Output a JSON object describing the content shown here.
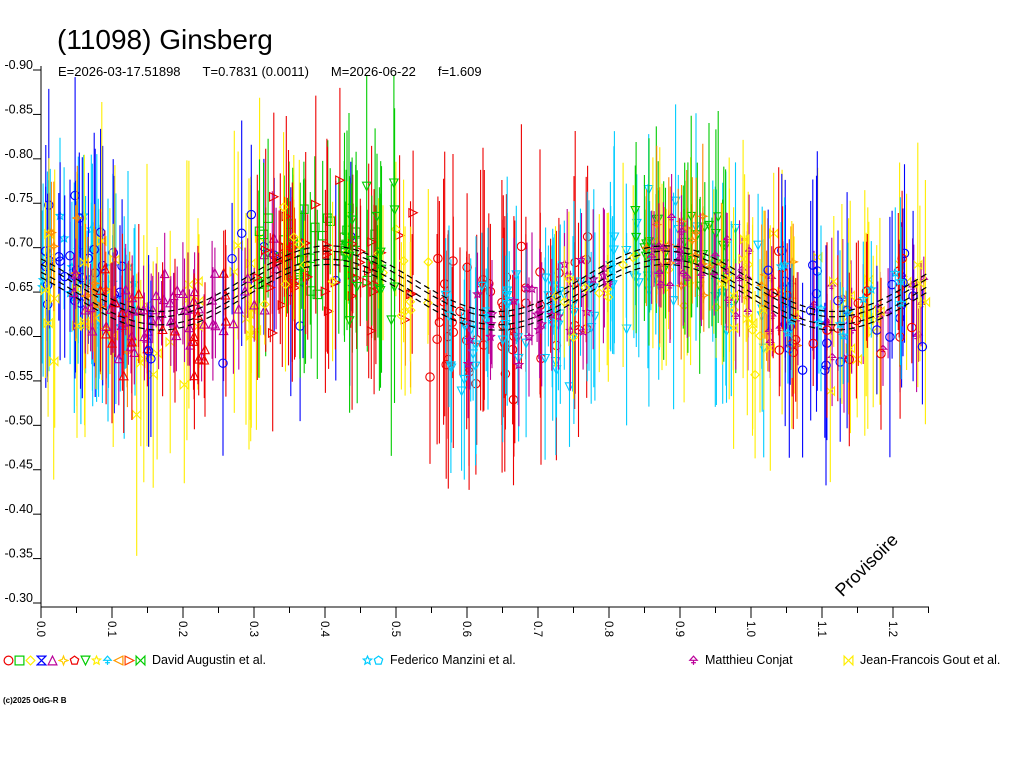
{
  "header": {
    "title": "(11098) Ginsberg",
    "ephemeris": {
      "E": "E=2026-03-17.51898",
      "T": "T=0.7831 (0.0011)",
      "M": "M=2026-06-22",
      "f": "f=1.609"
    }
  },
  "watermark": "Provisoire",
  "footer": "(c)2025 OdG-R B",
  "legend": {
    "groups": [
      {
        "label": "David Augustin et al.",
        "symbols": [
          {
            "shape": "circle",
            "color": "#ee0000"
          },
          {
            "shape": "square",
            "color": "#00cc00"
          },
          {
            "shape": "diamond",
            "color": "#ffee00"
          },
          {
            "shape": "bowtie-v",
            "color": "#0000ff"
          },
          {
            "shape": "triangle-up",
            "color": "#bb0099"
          },
          {
            "shape": "star4",
            "color": "#ffcc00"
          },
          {
            "shape": "pentagon",
            "color": "#ee0000"
          },
          {
            "shape": "triangle-down",
            "color": "#00cc00"
          },
          {
            "shape": "star",
            "color": "#ffee00"
          },
          {
            "shape": "tree",
            "color": "#00ccff"
          },
          {
            "shape": "triangle-left",
            "color": "#ff9900"
          },
          {
            "shape": "triangle-right",
            "color": "#ff4400"
          },
          {
            "shape": "bowtie-h",
            "color": "#00cc00"
          }
        ]
      },
      {
        "label": "Federico Manzini et al.",
        "symbols": [
          {
            "shape": "star",
            "color": "#00ccff"
          },
          {
            "shape": "pentagon",
            "color": "#00ccff"
          }
        ]
      },
      {
        "label": "Matthieu Conjat",
        "symbols": [
          {
            "shape": "tree",
            "color": "#bb0099"
          }
        ]
      },
      {
        "label": "Jean-Francois Gout et al.",
        "symbols": [
          {
            "shape": "bowtie-h",
            "color": "#ffee00"
          }
        ]
      }
    ]
  },
  "chart_data": {
    "type": "scatter",
    "title": "(11098) Ginsberg",
    "x_axis": {
      "min": 0.0,
      "max": 1.25,
      "major_ticks": [
        0.0,
        0.1,
        0.2,
        0.3,
        0.4,
        0.5,
        0.6,
        0.7,
        0.8,
        0.9,
        1.0,
        1.1,
        1.2
      ],
      "minor_step": 0.05,
      "tick_label_rotation_deg": 90
    },
    "y_axis": {
      "top": -0.9,
      "bottom": -0.3,
      "ticks": [
        -0.9,
        -0.85,
        -0.8,
        -0.75,
        -0.7,
        -0.65,
        -0.6,
        -0.55,
        -0.5,
        -0.45,
        -0.4,
        -0.35,
        -0.3
      ],
      "inverted_magnitude_scale": true
    },
    "model_curve": {
      "style": "dashed-black",
      "mid_mag": -0.649,
      "amplitude_mag": 0.037,
      "phase_of_maximum": 0.405,
      "oscillation_period_phase": 0.475,
      "band_offsets_mag": [
        -0.0105,
        -0.0045,
        0.0045,
        0.0105
      ]
    },
    "sessions": [
      {
        "color": "#00ccff",
        "symbol": "star",
        "x_range": [
          0.0,
          0.135
        ],
        "n": 42,
        "offset": -0.01,
        "sigma": 0.03,
        "err": [
          0.05,
          0.13
        ]
      },
      {
        "color": "#0000ff",
        "symbol": "circle",
        "x_range": [
          0.0,
          0.115
        ],
        "n": 26,
        "offset": -0.02,
        "sigma": 0.04,
        "err": [
          0.06,
          0.14
        ]
      },
      {
        "color": "#ffee00",
        "symbol": "bowtie-h",
        "x_range": [
          0.0,
          0.31
        ],
        "n": 40,
        "offset": 0.01,
        "sigma": 0.045,
        "err": [
          0.07,
          0.16
        ]
      },
      {
        "color": "#ff8800",
        "symbol": "star4",
        "x_range": [
          0.0,
          0.13
        ],
        "n": 16,
        "offset": 0.0,
        "sigma": 0.03,
        "err": [
          0.04,
          0.09
        ]
      },
      {
        "color": "#bb0099",
        "symbol": "triangle-up",
        "x_range": [
          0.04,
          0.335
        ],
        "n": 62,
        "offset": 0.0,
        "sigma": 0.022,
        "err": [
          0.025,
          0.07
        ]
      },
      {
        "color": "#ee0000",
        "symbol": "triangle-up",
        "x_range": [
          0.08,
          0.27
        ],
        "n": 22,
        "offset": 0.015,
        "sigma": 0.03,
        "err": [
          0.04,
          0.1
        ]
      },
      {
        "color": "#0000ff",
        "symbol": "circle",
        "x_range": [
          0.14,
          0.44
        ],
        "n": 14,
        "offset": -0.01,
        "sigma": 0.045,
        "err": [
          0.06,
          0.13
        ]
      },
      {
        "color": "#00cc00",
        "symbol": "square",
        "x_range": [
          0.295,
          0.475
        ],
        "n": 40,
        "offset": -0.01,
        "sigma": 0.032,
        "err": [
          0.05,
          0.12
        ]
      },
      {
        "color": "#ee0000",
        "symbol": "triangle-right",
        "x_range": [
          0.3,
          0.53
        ],
        "n": 46,
        "offset": 0.0,
        "sigma": 0.035,
        "err": [
          0.05,
          0.13
        ]
      },
      {
        "color": "#ffee00",
        "symbol": "diamond",
        "x_range": [
          0.31,
          0.55
        ],
        "n": 18,
        "offset": 0.005,
        "sigma": 0.03,
        "err": [
          0.04,
          0.1
        ]
      },
      {
        "color": "#00cc00",
        "symbol": "triangle-down",
        "x_range": [
          0.415,
          0.5
        ],
        "n": 16,
        "offset": -0.02,
        "sigma": 0.045,
        "err": [
          0.07,
          0.16
        ]
      },
      {
        "color": "#ee0000",
        "symbol": "circle",
        "x_range": [
          0.53,
          0.78
        ],
        "n": 55,
        "offset": 0.0,
        "sigma": 0.04,
        "err": [
          0.06,
          0.15
        ]
      },
      {
        "color": "#00ccff",
        "symbol": "triangle-down",
        "x_range": [
          0.57,
          1.02
        ],
        "n": 88,
        "offset": 0.01,
        "sigma": 0.038,
        "err": [
          0.05,
          0.13
        ]
      },
      {
        "color": "#bb0099",
        "symbol": "star",
        "x_range": [
          0.6,
          0.8
        ],
        "n": 28,
        "offset": 0.005,
        "sigma": 0.025,
        "err": [
          0.03,
          0.08
        ]
      },
      {
        "color": "#ffee00",
        "symbol": "diamond",
        "x_range": [
          0.72,
          1.02
        ],
        "n": 30,
        "offset": 0.015,
        "sigma": 0.035,
        "err": [
          0.05,
          0.12
        ]
      },
      {
        "color": "#00cc00",
        "symbol": "triangle-down",
        "x_range": [
          0.835,
          0.98
        ],
        "n": 30,
        "offset": -0.01,
        "sigma": 0.03,
        "err": [
          0.05,
          0.12
        ]
      },
      {
        "color": "#ff8800",
        "symbol": "star4",
        "x_range": [
          0.84,
          1.07
        ],
        "n": 28,
        "offset": 0.0,
        "sigma": 0.025,
        "err": [
          0.04,
          0.09
        ]
      },
      {
        "color": "#bb0099",
        "symbol": "tree",
        "x_range": [
          0.86,
          1.25
        ],
        "n": 58,
        "offset": 0.0,
        "sigma": 0.022,
        "err": [
          0.025,
          0.07
        ]
      },
      {
        "color": "#ffee00",
        "symbol": "bowtie-h",
        "x_range": [
          0.95,
          1.25
        ],
        "n": 34,
        "offset": 0.01,
        "sigma": 0.04,
        "err": [
          0.06,
          0.14
        ]
      },
      {
        "color": "#0000ff",
        "symbol": "circle",
        "x_range": [
          1.01,
          1.25
        ],
        "n": 26,
        "offset": -0.015,
        "sigma": 0.04,
        "err": [
          0.06,
          0.14
        ]
      },
      {
        "color": "#ee0000",
        "symbol": "circle",
        "x_range": [
          1.02,
          1.25
        ],
        "n": 22,
        "offset": 0.01,
        "sigma": 0.03,
        "err": [
          0.04,
          0.1
        ]
      },
      {
        "color": "#00ccff",
        "symbol": "star",
        "x_range": [
          1.04,
          1.25
        ],
        "n": 14,
        "offset": -0.005,
        "sigma": 0.03,
        "err": [
          0.04,
          0.1
        ]
      }
    ]
  }
}
